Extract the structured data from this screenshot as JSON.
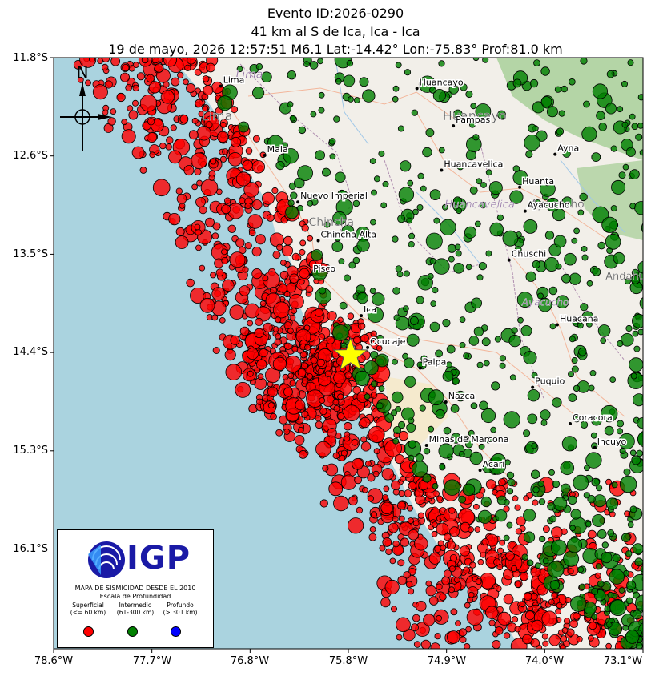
{
  "title": {
    "line1": "Evento ID:2026-0290",
    "line2": "41 km al S de Ica, Ica - Ica",
    "line3": "19 de mayo, 2026 12:57:51 M6.1 Lat:-14.42° Lon:-75.83° Prof:81.0 km"
  },
  "axes": {
    "lon_range": [
      -78.6,
      -73.1
    ],
    "lat_range": [
      -11.8,
      -17.0
    ],
    "x_ticks": [
      "78.6°W",
      "77.7°W",
      "76.8°W",
      "75.8°W",
      "74.9°W",
      "74.0°W",
      "73.1°W"
    ],
    "y_ticks": [
      "11.8°S",
      "12.6°S",
      "13.5°S",
      "14.4°S",
      "15.3°S",
      "16.1°S"
    ]
  },
  "north_arrow": {
    "label": "N"
  },
  "epicenter": {
    "lat": -14.42,
    "lon": -75.83,
    "magnitude": 6.1,
    "depth_km": 81.0,
    "color": "#ffff00"
  },
  "cities": [
    {
      "name": "Lima",
      "lon": -77.04,
      "lat": -12.05
    },
    {
      "name": "Mala",
      "lon": -76.63,
      "lat": -12.66
    },
    {
      "name": "Nuevo Imperial",
      "lon": -76.32,
      "lat": -13.07
    },
    {
      "name": "Chincha Alta",
      "lon": -76.13,
      "lat": -13.41
    },
    {
      "name": "Pisco",
      "lon": -76.2,
      "lat": -13.71
    },
    {
      "name": "Ica",
      "lon": -75.73,
      "lat": -14.07
    },
    {
      "name": "Ocucaje",
      "lon": -75.67,
      "lat": -14.35
    },
    {
      "name": "Huancayo",
      "lon": -75.21,
      "lat": -12.07
    },
    {
      "name": "Pampas",
      "lon": -74.87,
      "lat": -12.4
    },
    {
      "name": "Huancavelica",
      "lon": -74.98,
      "lat": -12.79
    },
    {
      "name": "Huanta",
      "lon": -74.25,
      "lat": -12.94
    },
    {
      "name": "Ayna",
      "lon": -73.92,
      "lat": -12.65
    },
    {
      "name": "Ayacucho",
      "lon": -74.2,
      "lat": -13.15
    },
    {
      "name": "Chuschi",
      "lon": -74.35,
      "lat": -13.58
    },
    {
      "name": "Huacana",
      "lon": -73.9,
      "lat": -14.15
    },
    {
      "name": "Palpa",
      "lon": -75.18,
      "lat": -14.53
    },
    {
      "name": "Nazca",
      "lon": -74.94,
      "lat": -14.83
    },
    {
      "name": "Puquio",
      "lon": -74.13,
      "lat": -14.7
    },
    {
      "name": "Coracora",
      "lon": -73.78,
      "lat": -15.02
    },
    {
      "name": "Minas de Marcona",
      "lon": -75.12,
      "lat": -15.21
    },
    {
      "name": "Incuyo",
      "lon": -73.55,
      "lat": -15.23
    },
    {
      "name": "Acari",
      "lon": -74.62,
      "lat": -15.43
    }
  ],
  "region_labels": [
    {
      "name": "Lima",
      "lon": -76.9,
      "lat": -11.98,
      "size": 14,
      "italic": true
    },
    {
      "name": "Lima",
      "lon": -77.22,
      "lat": -12.35,
      "size": 16,
      "italic": false
    },
    {
      "name": "Huancayo",
      "lon": -74.97,
      "lat": -12.35,
      "size": 16,
      "italic": false
    },
    {
      "name": "Chincha",
      "lon": -76.22,
      "lat": -13.28,
      "size": 14,
      "italic": false
    },
    {
      "name": "Huancavelica",
      "lon": -74.95,
      "lat": -13.12,
      "size": 13,
      "italic": true
    },
    {
      "name": "Ayacucho",
      "lon": -74.15,
      "lat": -13.12,
      "size": 14,
      "italic": false
    },
    {
      "name": "Ayacucho",
      "lon": -74.23,
      "lat": -13.98,
      "size": 12,
      "italic": true
    },
    {
      "name": "Andahuayla",
      "lon": -73.45,
      "lat": -13.75,
      "size": 13,
      "italic": false
    }
  ],
  "seismicity_colors": {
    "superficial": "#ff0000",
    "intermedio": "#008000",
    "profundo": "#0000ff"
  },
  "legend": {
    "logo_text": "IGP",
    "title": "MAPA DE SISMICIDAD DESDE EL 2010",
    "subtitle": "Escala de Profundidad",
    "classes": [
      {
        "name": "Superficial",
        "range": "(<= 60 km)",
        "color": "#ff0000"
      },
      {
        "name": "Intermedio",
        "range": "(61-300 km)",
        "color": "#008000"
      },
      {
        "name": "Profundo",
        "range": "(> 301 km)",
        "color": "#0000ff"
      }
    ]
  }
}
